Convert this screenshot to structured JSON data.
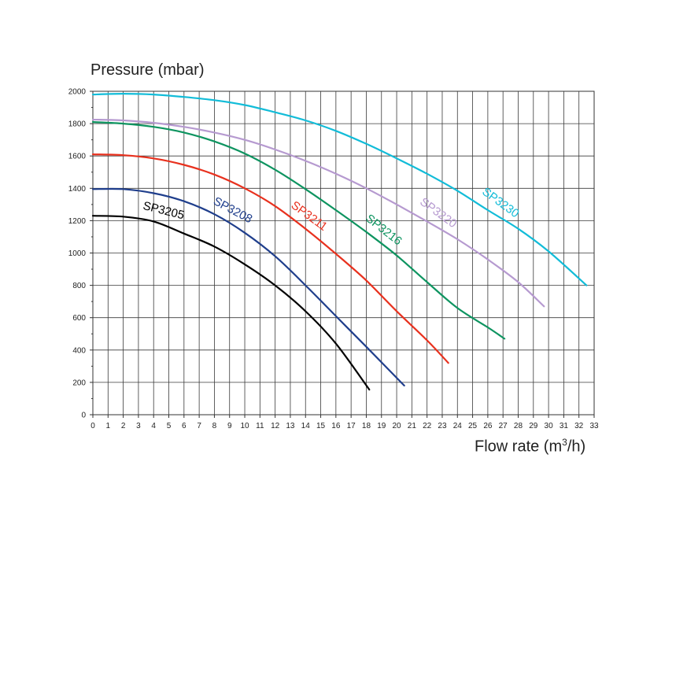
{
  "chart_data": {
    "type": "line",
    "ylabel": "Pressure (mbar)",
    "xlabel_main": "Flow rate (m",
    "xlabel_sup": "3",
    "xlabel_end": "/h)",
    "xlim": [
      0,
      33
    ],
    "ylim": [
      0,
      2000
    ],
    "x_ticks": [
      "0",
      "1",
      "2",
      "3",
      "4",
      "5",
      "6",
      "7",
      "8",
      "9",
      "10",
      "11",
      "12",
      "13",
      "14",
      "15",
      "16",
      "17",
      "18",
      "19",
      "20",
      "21",
      "22",
      "23",
      "24",
      "25",
      "26",
      "27",
      "28",
      "29",
      "30",
      "31",
      "32",
      "33"
    ],
    "y_ticks": [
      "0",
      "200",
      "400",
      "600",
      "800",
      "1000",
      "1200",
      "1400",
      "1600",
      "1800",
      "2000"
    ],
    "grid": true,
    "series": [
      {
        "name": "SP3205",
        "color": "#000000",
        "points": [
          [
            0,
            1230
          ],
          [
            2,
            1225
          ],
          [
            4,
            1195
          ],
          [
            6,
            1120
          ],
          [
            8,
            1040
          ],
          [
            10,
            930
          ],
          [
            12,
            800
          ],
          [
            14,
            640
          ],
          [
            16,
            440
          ],
          [
            18.2,
            155
          ]
        ]
      },
      {
        "name": "SP3208",
        "color": "#1f3e8c",
        "points": [
          [
            0,
            1395
          ],
          [
            2,
            1395
          ],
          [
            4,
            1370
          ],
          [
            6,
            1320
          ],
          [
            8,
            1240
          ],
          [
            10,
            1125
          ],
          [
            12,
            980
          ],
          [
            14,
            800
          ],
          [
            16,
            610
          ],
          [
            18,
            420
          ],
          [
            20.5,
            180
          ]
        ]
      },
      {
        "name": "SP3211",
        "color": "#e8311e",
        "points": [
          [
            0,
            1610
          ],
          [
            2,
            1605
          ],
          [
            4,
            1585
          ],
          [
            6,
            1545
          ],
          [
            8,
            1485
          ],
          [
            10,
            1400
          ],
          [
            12,
            1290
          ],
          [
            14,
            1150
          ],
          [
            16,
            995
          ],
          [
            18,
            830
          ],
          [
            20,
            640
          ],
          [
            22,
            460
          ],
          [
            23.4,
            320
          ]
        ]
      },
      {
        "name": "SP3216",
        "color": "#0e9460",
        "points": [
          [
            0,
            1810
          ],
          [
            2,
            1800
          ],
          [
            4,
            1780
          ],
          [
            6,
            1745
          ],
          [
            8,
            1690
          ],
          [
            10,
            1615
          ],
          [
            12,
            1515
          ],
          [
            14,
            1395
          ],
          [
            16,
            1265
          ],
          [
            18,
            1130
          ],
          [
            20,
            985
          ],
          [
            22,
            820
          ],
          [
            24,
            660
          ],
          [
            26,
            540
          ],
          [
            27.1,
            470
          ]
        ]
      },
      {
        "name": "SP3220",
        "color": "#b69ad0",
        "points": [
          [
            0,
            1825
          ],
          [
            2,
            1820
          ],
          [
            4,
            1805
          ],
          [
            6,
            1780
          ],
          [
            8,
            1745
          ],
          [
            10,
            1700
          ],
          [
            12,
            1640
          ],
          [
            14,
            1570
          ],
          [
            16,
            1490
          ],
          [
            18,
            1400
          ],
          [
            20,
            1300
          ],
          [
            22,
            1195
          ],
          [
            24,
            1085
          ],
          [
            26,
            960
          ],
          [
            28,
            820
          ],
          [
            29.7,
            670
          ]
        ]
      },
      {
        "name": "SP3230",
        "color": "#12bcd8",
        "points": [
          [
            0,
            1980
          ],
          [
            2,
            1985
          ],
          [
            4,
            1980
          ],
          [
            6,
            1965
          ],
          [
            8,
            1945
          ],
          [
            10,
            1915
          ],
          [
            12,
            1870
          ],
          [
            14,
            1820
          ],
          [
            16,
            1755
          ],
          [
            18,
            1675
          ],
          [
            20,
            1585
          ],
          [
            22,
            1490
          ],
          [
            24,
            1385
          ],
          [
            26,
            1265
          ],
          [
            28,
            1150
          ],
          [
            30,
            1010
          ],
          [
            32.5,
            800
          ]
        ]
      }
    ]
  }
}
